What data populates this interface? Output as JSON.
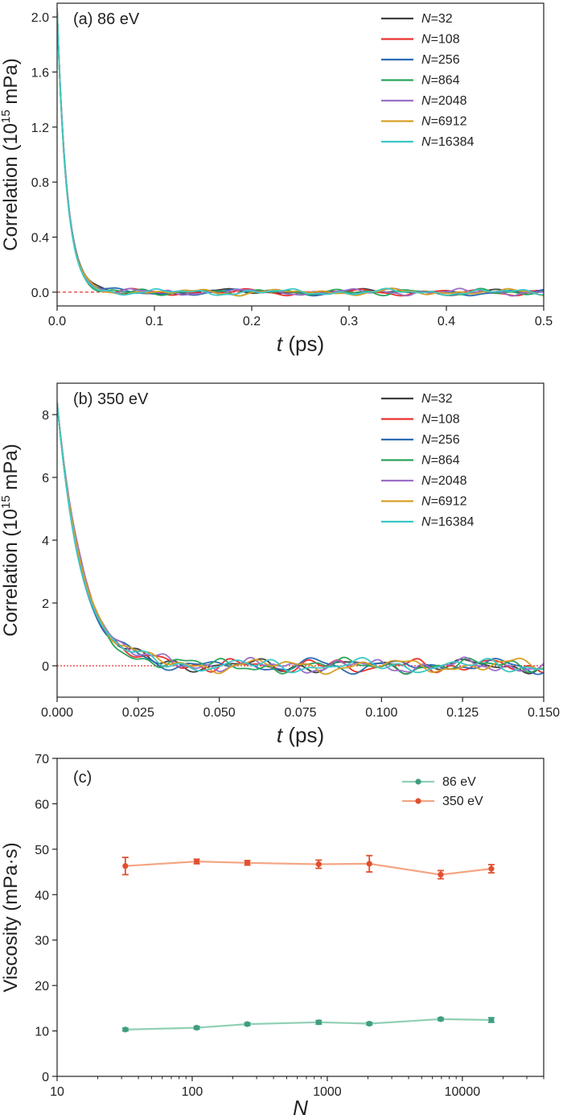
{
  "chart_data": [
    {
      "type": "line",
      "panel_label": "(a) 86 eV",
      "xlabel": "t (ps)",
      "ylabel": "Correlation (10^15 mPa)",
      "xlim": [
        0,
        0.5
      ],
      "ylim": [
        -0.1,
        2.1
      ],
      "xticks": [
        "0.0",
        "0.1",
        "0.2",
        "0.3",
        "0.4",
        "0.5"
      ],
      "yticks": [
        "0.0",
        "0.4",
        "0.8",
        "1.2",
        "1.6",
        "2.0"
      ],
      "legend_position": "top-right",
      "initial_value": 2.06,
      "decay_time_ps": 0.0095,
      "series": [
        {
          "name": "N=32",
          "color": "#404040"
        },
        {
          "name": "N=108",
          "color": "#e8322e"
        },
        {
          "name": "N=256",
          "color": "#2c6cb4"
        },
        {
          "name": "N=864",
          "color": "#2aa45c"
        },
        {
          "name": "N=2048",
          "color": "#9c6fc8"
        },
        {
          "name": "N=6912",
          "color": "#d6a028"
        },
        {
          "name": "N=16384",
          "color": "#3cc8c4"
        }
      ]
    },
    {
      "type": "line",
      "panel_label": "(b) 350 eV",
      "xlabel": "t (ps)",
      "ylabel": "Correlation (10^15 mPa)",
      "xlim": [
        0,
        0.15
      ],
      "ylim": [
        -1,
        9
      ],
      "xticks": [
        "0.000",
        "0.025",
        "0.050",
        "0.075",
        "0.100",
        "0.125",
        "0.150"
      ],
      "yticks": [
        "0",
        "2",
        "4",
        "6",
        "8"
      ],
      "legend_position": "top-right",
      "initial_value": 8.4,
      "decay_time_ps": 0.0075,
      "series": [
        {
          "name": "N=32",
          "color": "#404040"
        },
        {
          "name": "N=108",
          "color": "#e8322e"
        },
        {
          "name": "N=256",
          "color": "#2c6cb4"
        },
        {
          "name": "N=864",
          "color": "#2aa45c"
        },
        {
          "name": "N=2048",
          "color": "#9c6fc8"
        },
        {
          "name": "N=6912",
          "color": "#d6a028"
        },
        {
          "name": "N=16384",
          "color": "#3cc8c4"
        }
      ]
    },
    {
      "type": "scatter",
      "panel_label": "(c)",
      "xlabel": "N",
      "ylabel": "Viscosity (mPa·s)",
      "xscale": "log",
      "xlim": [
        10,
        40000
      ],
      "ylim": [
        0,
        70
      ],
      "xticks": [
        "10",
        "100",
        "1000",
        "10000"
      ],
      "yticks": [
        "0",
        "10",
        "20",
        "30",
        "40",
        "50",
        "60",
        "70"
      ],
      "legend_position": "top-right",
      "x": [
        32,
        108,
        256,
        864,
        2048,
        6912,
        16384
      ],
      "series": [
        {
          "name": "86 eV",
          "color": "#3f9e80",
          "line_color": "#8fd0b4",
          "values": [
            10.3,
            10.7,
            11.5,
            11.9,
            11.6,
            12.6,
            12.4
          ],
          "errors": [
            0.3,
            0.3,
            0.3,
            0.4,
            0.3,
            0.3,
            0.5
          ]
        },
        {
          "name": "350 eV",
          "color": "#e05030",
          "line_color": "#f4a584",
          "values": [
            46.3,
            47.3,
            47.0,
            46.7,
            46.8,
            44.4,
            45.7
          ],
          "errors": [
            1.9,
            0.5,
            0.5,
            0.9,
            1.8,
            0.9,
            0.9
          ]
        }
      ]
    }
  ]
}
